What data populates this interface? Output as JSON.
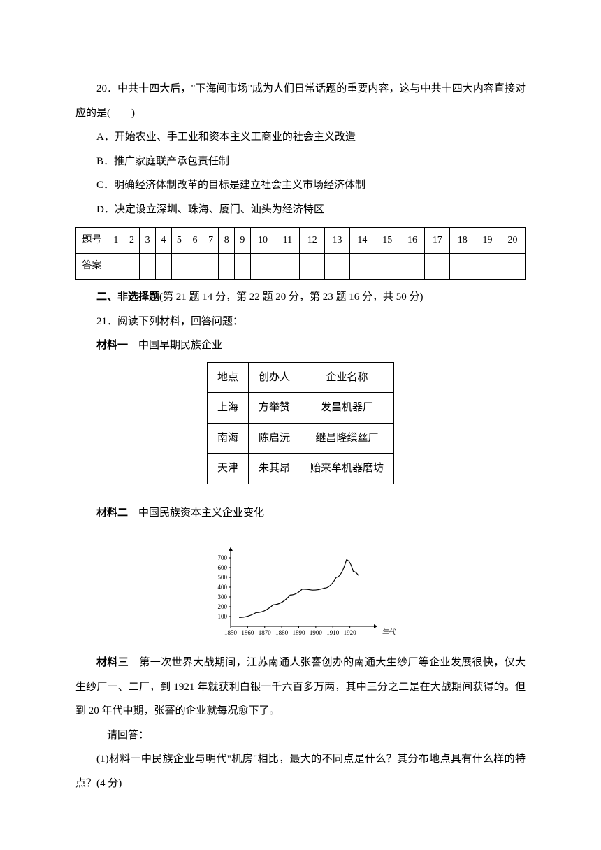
{
  "q20": {
    "text": "20．中共十四大后，\"下海闯市场\"成为人们日常话题的重要内容，这与中共十四大内容直接对应的是(　　)",
    "optA": "A．开始农业、手工业和资本主义工商业的社会主义改造",
    "optB": "B．推广家庭联产承包责任制",
    "optC": "C．明确经济体制改革的目标是建立社会主义市场经济体制",
    "optD": "D．决定设立深圳、珠海、厦门、汕头为经济特区"
  },
  "answerTable": {
    "rowLabel1": "题号",
    "rowLabel2": "答案",
    "nums": [
      "1",
      "2",
      "3",
      "4",
      "5",
      "6",
      "7",
      "8",
      "9",
      "10",
      "11",
      "12",
      "13",
      "14",
      "15",
      "16",
      "17",
      "18",
      "19",
      "20"
    ]
  },
  "section2": {
    "heading": "二、非选择题",
    "detail": "(第 21 题 14 分，第 22 题 20 分，第 23 题 16 分，共 50 分)"
  },
  "q21": {
    "intro": "21．阅读下列材料，回答问题：",
    "m1label": "材料一",
    "m1title": "　中国早期民族企业",
    "table": {
      "h1": "地点",
      "h2": "创办人",
      "h3": "企业名称",
      "r1c1": "上海",
      "r1c2": "方举赞",
      "r1c3": "发昌机器厂",
      "r2c1": "南海",
      "r2c2": "陈启沅",
      "r2c3": "继昌隆缫丝厂",
      "r3c1": "天津",
      "r3c2": "朱其昂",
      "r3c3": "贻来牟机器磨坊"
    },
    "m2label": "材料二",
    "m2title": "　中国民族资本主义企业变化",
    "m3label": "材料三",
    "m3text": "　第一次世界大战期间，江苏南通人张謇创办的南通大生纱厂等企业发展很快，仅大生纱厂一、二厂，到 1921 年就获利白银一千六百多万两，其中三分之二是在大战期间获得的。但到 20 年代中期，张謇的企业就每况愈下了。",
    "please": "　请回答：",
    "sub1": "(1)材料一中民族企业与明代\"机房\"相比，最大的不同点是什么？其分布地点具有什么样的特点？(4 分)"
  },
  "chart": {
    "type": "line",
    "yvalues": [
      100,
      200,
      300,
      400,
      500,
      600,
      700
    ],
    "xlabels": [
      "1850",
      "1860",
      "1870",
      "1880",
      "1890",
      "1900",
      "1910",
      "1920"
    ],
    "xaxis_label": "年代",
    "line_color": "#000000",
    "axis_color": "#000000",
    "background_color": "#ffffff",
    "font_size": 9,
    "ylim": [
      0,
      750
    ],
    "points": [
      {
        "x": 1855,
        "y": 90
      },
      {
        "x": 1865,
        "y": 140
      },
      {
        "x": 1875,
        "y": 220
      },
      {
        "x": 1885,
        "y": 320
      },
      {
        "x": 1892,
        "y": 380
      },
      {
        "x": 1898,
        "y": 370
      },
      {
        "x": 1905,
        "y": 390
      },
      {
        "x": 1912,
        "y": 500
      },
      {
        "x": 1918,
        "y": 680
      },
      {
        "x": 1922,
        "y": 560
      },
      {
        "x": 1925,
        "y": 520
      }
    ]
  }
}
